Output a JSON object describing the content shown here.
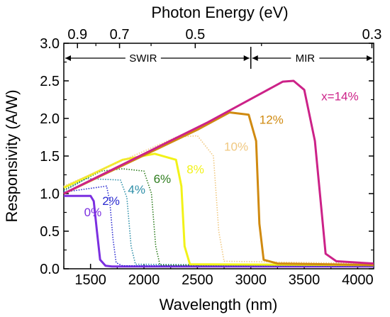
{
  "chart_data": {
    "type": "line",
    "xlabel": "Wavelength (nm)",
    "ylabel": "Responsivity (A/W)",
    "top_axis_label": "Photon Energy (eV)",
    "xlim": [
      1250,
      4150
    ],
    "ylim": [
      0.0,
      3.0
    ],
    "x_ticks": [
      1500,
      2000,
      2500,
      3000,
      3500,
      4000
    ],
    "y_ticks": [
      0.0,
      0.5,
      1.0,
      1.5,
      2.0,
      2.5,
      3.0
    ],
    "top_ticks": [
      {
        "label": "0.9",
        "energy_eV": 0.9
      },
      {
        "label": "0.7",
        "energy_eV": 0.7
      },
      {
        "label": "0.5",
        "energy_eV": 0.5
      },
      {
        "label": "0.3",
        "energy_eV": 0.3
      }
    ],
    "regions": [
      {
        "label": "SWIR",
        "from": 1250,
        "to": 3000
      },
      {
        "label": "MIR",
        "from": 3000,
        "to": 4150
      }
    ],
    "series": [
      {
        "name": "0%",
        "color": "#7B2FE0",
        "style": "solid",
        "points": [
          [
            1250,
            0.97
          ],
          [
            1500,
            0.97
          ],
          [
            1530,
            0.9
          ],
          [
            1560,
            0.5
          ],
          [
            1590,
            0.12
          ],
          [
            1640,
            0.04
          ],
          [
            1700,
            0.03
          ],
          [
            4150,
            0.03
          ]
        ],
        "label_at": [
          1440,
          0.7
        ]
      },
      {
        "name": "2%",
        "color": "#2A2AD0",
        "style": "dotted",
        "points": [
          [
            1250,
            1.02
          ],
          [
            1650,
            1.1
          ],
          [
            1680,
            0.9
          ],
          [
            1710,
            0.4
          ],
          [
            1740,
            0.08
          ],
          [
            1800,
            0.04
          ],
          [
            4150,
            0.04
          ]
        ],
        "label_at": [
          1610,
          0.85
        ]
      },
      {
        "name": "4%",
        "color": "#2E8FA8",
        "style": "dotted",
        "points": [
          [
            1250,
            1.03
          ],
          [
            1460,
            1.2
          ],
          [
            1780,
            1.18
          ],
          [
            1840,
            0.95
          ],
          [
            1880,
            0.3
          ],
          [
            1920,
            0.06
          ],
          [
            4150,
            0.04
          ]
        ],
        "label_at": [
          1850,
          1.0
        ]
      },
      {
        "name": "6%",
        "color": "#2E7D1E",
        "style": "dotted",
        "points": [
          [
            1250,
            1.05
          ],
          [
            1600,
            1.3
          ],
          [
            1800,
            1.33
          ],
          [
            2000,
            1.3
          ],
          [
            2070,
            1.0
          ],
          [
            2110,
            0.3
          ],
          [
            2150,
            0.05
          ],
          [
            4150,
            0.04
          ]
        ],
        "label_at": [
          2090,
          1.14
        ]
      },
      {
        "name": "8%",
        "color": "#F2F218",
        "style": "solid",
        "points": [
          [
            1250,
            1.08
          ],
          [
            1800,
            1.45
          ],
          [
            2100,
            1.53
          ],
          [
            2300,
            1.45
          ],
          [
            2350,
            1.1
          ],
          [
            2380,
            0.3
          ],
          [
            2430,
            0.06
          ],
          [
            4150,
            0.05
          ]
        ],
        "label_at": [
          2400,
          1.27
        ]
      },
      {
        "name": "10%",
        "color": "#F0C880",
        "style": "dotted",
        "points": [
          [
            1250,
            1.1
          ],
          [
            2300,
            1.75
          ],
          [
            2500,
            1.77
          ],
          [
            2650,
            1.5
          ],
          [
            2700,
            0.5
          ],
          [
            2750,
            0.1
          ],
          [
            4150,
            0.07
          ]
        ],
        "label_at": [
          2750,
          1.57
        ]
      },
      {
        "name": "12%",
        "color": "#D08A10",
        "style": "solid",
        "points": [
          [
            1250,
            1.0
          ],
          [
            2500,
            1.85
          ],
          [
            2800,
            2.08
          ],
          [
            2980,
            2.05
          ],
          [
            3050,
            1.7
          ],
          [
            3080,
            0.6
          ],
          [
            3120,
            0.12
          ],
          [
            3250,
            0.07
          ],
          [
            4150,
            0.05
          ]
        ],
        "label_at": [
          3080,
          1.93
        ]
      },
      {
        "name": "x=14%",
        "color": "#CC2288",
        "style": "solid",
        "points": [
          [
            1250,
            1.0
          ],
          [
            2600,
            1.95
          ],
          [
            3300,
            2.49
          ],
          [
            3400,
            2.5
          ],
          [
            3500,
            2.38
          ],
          [
            3600,
            1.7
          ],
          [
            3660,
            0.8
          ],
          [
            3700,
            0.2
          ],
          [
            3800,
            0.1
          ],
          [
            4150,
            0.07
          ]
        ],
        "label_at": [
          3660,
          2.24
        ]
      }
    ],
    "grid": false
  }
}
